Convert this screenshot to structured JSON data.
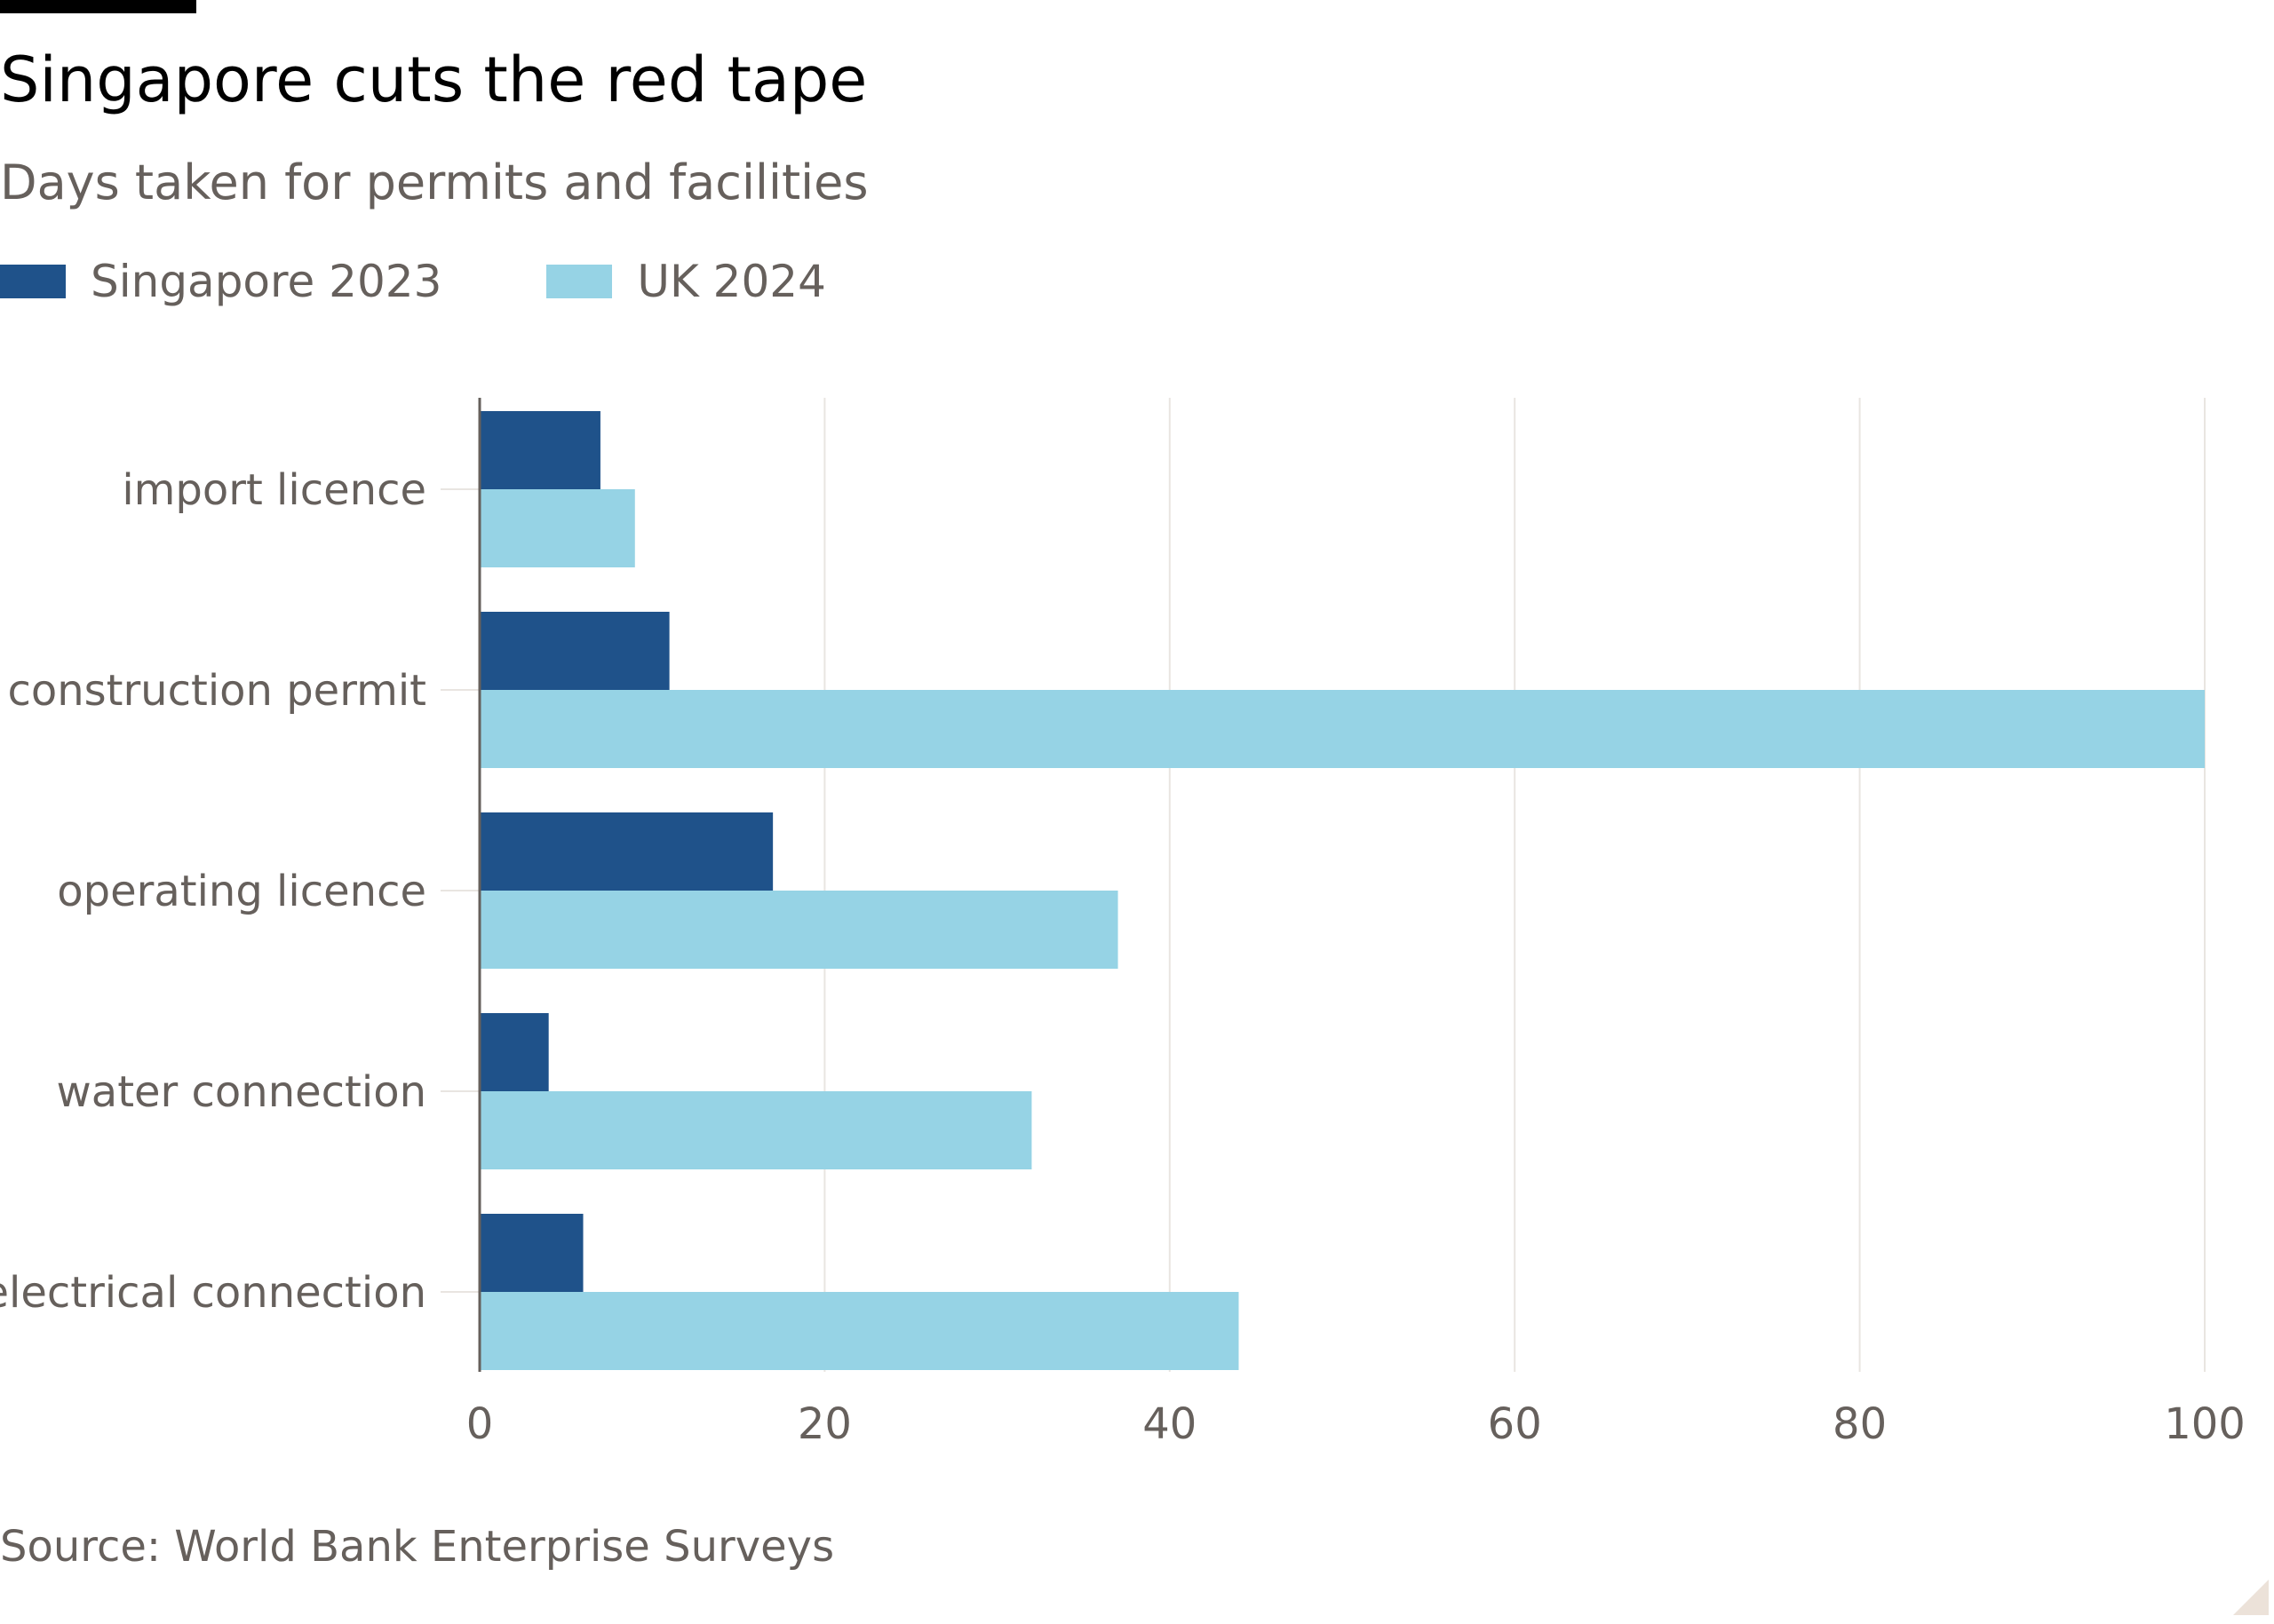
{
  "header": {
    "title": "Singapore cuts the red tape",
    "subtitle": "Days taken for permits and facilities"
  },
  "legend": [
    {
      "label": "Singapore 2023",
      "color": "#1f528a"
    },
    {
      "label": "UK 2024",
      "color": "#96d3e5"
    }
  ],
  "footer": {
    "source": "Source: World Bank Enterprise Surveys"
  },
  "chart_data": {
    "type": "bar",
    "orientation": "horizontal",
    "title": "Singapore cuts the red tape",
    "subtitle": "Days taken for permits and facilities",
    "xlabel": "",
    "ylabel": "",
    "categories": [
      "import licence",
      "construction permit",
      "operating licence",
      "water connection",
      "electrical connection"
    ],
    "series": [
      {
        "name": "Singapore 2023",
        "color": "#1f528a",
        "values": [
          7,
          11,
          17,
          4,
          6
        ]
      },
      {
        "name": "UK 2024",
        "color": "#96d3e5",
        "values": [
          9,
          100,
          37,
          32,
          44
        ]
      }
    ],
    "xlim": [
      0,
      100
    ],
    "xticks": [
      0,
      20,
      40,
      60,
      80,
      100
    ],
    "grid": true,
    "legend_position": "top-left"
  }
}
